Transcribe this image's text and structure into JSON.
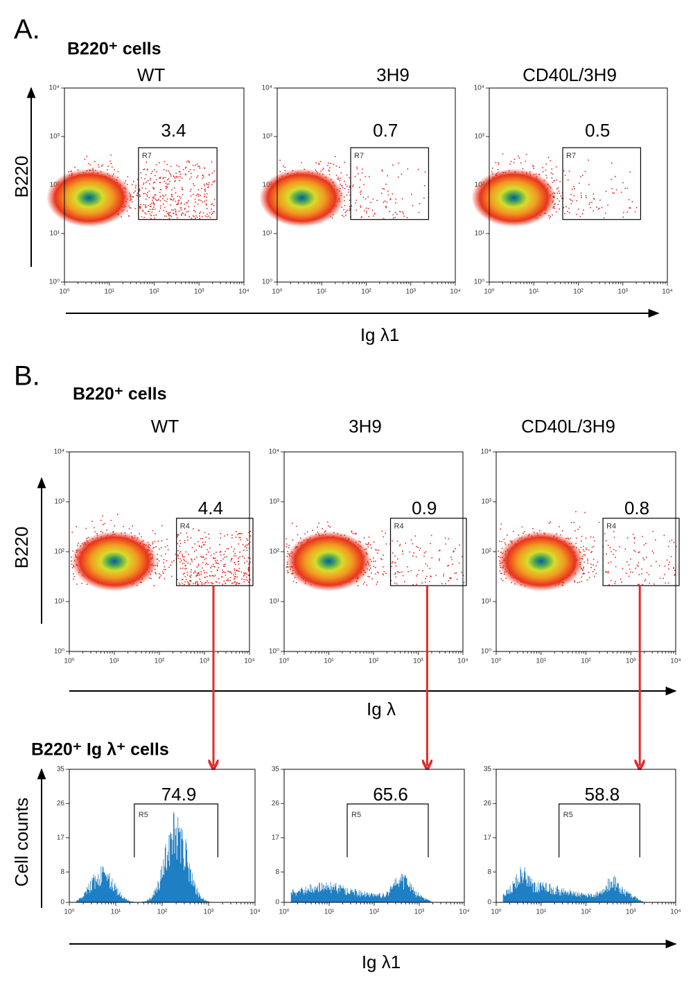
{
  "sections": [
    {
      "letter": "A.",
      "title": "B220⁺ cells",
      "y_label": "B220",
      "x_label": "Ig λ1",
      "plots": [
        {
          "name": "WT",
          "gate": "R7",
          "value": 3.4
        },
        {
          "name": "3H9",
          "gate": "R7",
          "value": 0.7
        },
        {
          "name": "CD40L/3H9",
          "gate": "R7",
          "value": 0.5
        }
      ]
    },
    {
      "letter": "B.",
      "title": "B220⁺ cells",
      "y_label": "B220",
      "x_label": "Ig λ",
      "plots": [
        {
          "name": "WT",
          "gate": "R4",
          "value": 4.4
        },
        {
          "name": "3H9",
          "gate": "R4",
          "value": 0.9
        },
        {
          "name": "CD40L/3H9",
          "gate": "R4",
          "value": 0.8
        }
      ]
    },
    {
      "title": "B220⁺ Ig λ⁺ cells",
      "y_label": "Cell counts",
      "x_label": "Ig λ1",
      "plots": [
        {
          "gate": "R5",
          "value": 74.9
        },
        {
          "gate": "R5",
          "value": 65.6
        },
        {
          "gate": "R5",
          "value": 58.8
        }
      ]
    }
  ],
  "log_ticks": [
    "10⁰",
    "10¹",
    "10²",
    "10³",
    "10⁴"
  ],
  "count_ticks": [
    0,
    8,
    17,
    26,
    35
  ]
}
